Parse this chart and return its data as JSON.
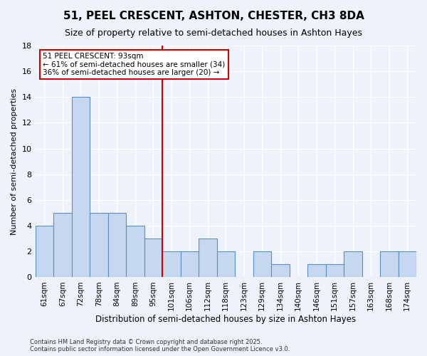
{
  "title1": "51, PEEL CRESCENT, ASHTON, CHESTER, CH3 8DA",
  "title2": "Size of property relative to semi-detached houses in Ashton Hayes",
  "xlabel": "Distribution of semi-detached houses by size in Ashton Hayes",
  "ylabel": "Number of semi-detached properties",
  "categories": [
    "61sqm",
    "67sqm",
    "72sqm",
    "78sqm",
    "84sqm",
    "89sqm",
    "95sqm",
    "101sqm",
    "106sqm",
    "112sqm",
    "118sqm",
    "123sqm",
    "129sqm",
    "134sqm",
    "140sqm",
    "146sqm",
    "151sqm",
    "157sqm",
    "163sqm",
    "168sqm",
    "174sqm"
  ],
  "values": [
    4,
    5,
    14,
    5,
    5,
    4,
    3,
    2,
    2,
    3,
    2,
    0,
    2,
    1,
    0,
    1,
    1,
    2,
    0,
    2,
    2
  ],
  "bar_color": "#c5d8f0",
  "bar_edge_color": "#5a8fc3",
  "vline_color": "#cc0000",
  "ylim": [
    0,
    18
  ],
  "yticks": [
    0,
    2,
    4,
    6,
    8,
    10,
    12,
    14,
    16,
    18
  ],
  "annotation_title": "51 PEEL CRESCENT: 93sqm",
  "annotation_line1": "← 61% of semi-detached houses are smaller (34)",
  "annotation_line2": "36% of semi-detached houses are larger (20) →",
  "annotation_box_color": "#ffffff",
  "annotation_box_edge": "#cc0000",
  "footer1": "Contains HM Land Registry data © Crown copyright and database right 2025.",
  "footer2": "Contains public sector information licensed under the Open Government Licence v3.0.",
  "bg_color": "#eef2fb",
  "grid_color": "#ffffff"
}
